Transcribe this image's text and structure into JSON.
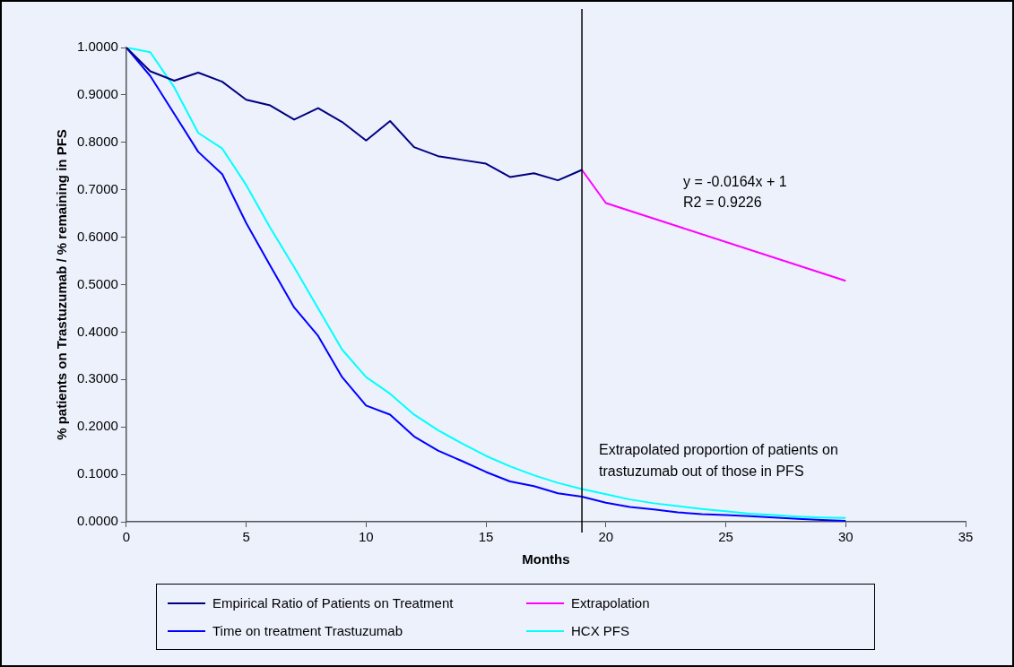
{
  "chart_data": {
    "type": "line",
    "xlabel": "Months",
    "ylabel": "% patients on Trastuzumab / % remaining in PFS",
    "xlim": [
      0,
      35
    ],
    "xticks": [
      0,
      5,
      10,
      15,
      20,
      25,
      30,
      35
    ],
    "ylim": [
      0,
      1
    ],
    "yticks": [
      {
        "value": 0,
        "label": "0.0000"
      },
      {
        "value": 0.1,
        "label": "0.1000"
      },
      {
        "value": 0.2,
        "label": "0.2000"
      },
      {
        "value": 0.3,
        "label": "0.3000"
      },
      {
        "value": 0.4,
        "label": "0.4000"
      },
      {
        "value": 0.5,
        "label": "0.5000"
      },
      {
        "value": 0.6,
        "label": "0.6000"
      },
      {
        "value": 0.7,
        "label": "0.7000"
      },
      {
        "value": 0.8,
        "label": "0.8000"
      },
      {
        "value": 0.9,
        "label": "0.9000"
      },
      {
        "value": 1,
        "label": "1.0000"
      }
    ],
    "grid": false,
    "legend": "bottom",
    "series": [
      {
        "name": "Empirical Ratio of Patients on Treatment",
        "color": "#000080",
        "x": [
          0,
          1,
          2,
          3,
          4,
          5,
          6,
          7,
          8,
          9,
          10,
          11,
          12,
          13,
          14,
          15,
          16,
          17,
          18,
          19
        ],
        "values": [
          1,
          0.95,
          0.93,
          0.947,
          0.928,
          0.89,
          0.878,
          0.848,
          0.872,
          0.843,
          0.804,
          0.845,
          0.79,
          0.771,
          0.763,
          0.755,
          0.727,
          0.735,
          0.72,
          0.742
        ]
      },
      {
        "name": "Extrapolation",
        "color": "#ff00ff",
        "x": [
          19,
          20,
          30
        ],
        "values": [
          0.742,
          0.672,
          0.508
        ]
      },
      {
        "name": "Time on treatment Trastuzumab",
        "color": "#0000ff",
        "x": [
          0,
          1,
          2,
          3,
          4,
          5,
          6,
          7,
          8,
          9,
          10,
          11,
          12,
          13,
          14,
          15,
          16,
          17,
          18,
          19,
          20,
          21,
          22,
          23,
          24,
          25,
          26,
          27,
          28,
          29,
          30
        ],
        "values": [
          1,
          0.94,
          0.86,
          0.78,
          0.733,
          0.63,
          0.54,
          0.452,
          0.392,
          0.305,
          0.245,
          0.226,
          0.18,
          0.15,
          0.128,
          0.105,
          0.085,
          0.075,
          0.06,
          0.053,
          0.04,
          0.031,
          0.026,
          0.02,
          0.016,
          0.014,
          0.012,
          0.009,
          0.006,
          0.004,
          0.002
        ]
      },
      {
        "name": "HCX PFS",
        "color": "#00ffff",
        "x": [
          0,
          1,
          2,
          3,
          4,
          5,
          6,
          7,
          8,
          9,
          10,
          11,
          12,
          13,
          14,
          15,
          16,
          17,
          18,
          19,
          20,
          21,
          22,
          23,
          24,
          25,
          26,
          27,
          28,
          29,
          30
        ],
        "values": [
          1,
          0.99,
          0.916,
          0.82,
          0.787,
          0.71,
          0.62,
          0.537,
          0.45,
          0.363,
          0.305,
          0.27,
          0.226,
          0.193,
          0.165,
          0.139,
          0.117,
          0.098,
          0.082,
          0.069,
          0.058,
          0.047,
          0.039,
          0.033,
          0.027,
          0.022,
          0.017,
          0.014,
          0.011,
          0.009,
          0.008
        ]
      }
    ],
    "ref_lines": [
      {
        "axis": "x",
        "value": 19,
        "color": "#000000"
      }
    ],
    "annotations": [
      "y = -0.0164x + 1",
      "R2 = 0.9226",
      "Extrapolated proportion of patients on trastuzumab out of those in PFS"
    ]
  }
}
